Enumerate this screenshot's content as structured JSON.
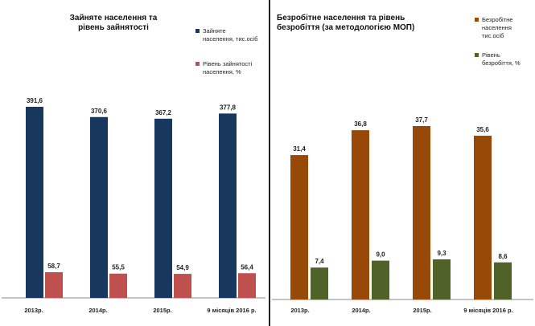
{
  "chart_data": [
    {
      "type": "bar",
      "title": "Зайняте населення та рівень зайнятості",
      "title_lines": [
        "Зайняте населення та",
        "рівень зайнятості"
      ],
      "categories": [
        "2013р.",
        "2014р.",
        "2015р.",
        "9 місяців 2016 р."
      ],
      "series": [
        {
          "name": "Зайняте населення, тис.осіб",
          "name_lines": [
            "Зайняте",
            "населення, тис.осіб"
          ],
          "color": "#17375e",
          "values": [
            391.6,
            370.6,
            367.2,
            377.8
          ],
          "labels": [
            "391,6",
            "370,6",
            "367,2",
            "377,8"
          ]
        },
        {
          "name": "Рівень зайнятості населення, %",
          "name_lines": [
            "Рівень зайнятості",
            "населення, %"
          ],
          "color": "#c0504d",
          "values": [
            58.7,
            55.5,
            54.9,
            56.4
          ],
          "labels": [
            "58,7",
            "55,5",
            "54,9",
            "56,4"
          ]
        }
      ],
      "legend": "top-right",
      "grid": false
    },
    {
      "type": "bar",
      "title": "Безробітне населення та рівень безробіття (за методологією МОП)",
      "title_lines": [
        "Безробітне населення та рівень",
        "безробіття (за методологією МОП)"
      ],
      "categories": [
        "2013р.",
        "2014р.",
        "2015р.",
        "9 місяців 2016 р."
      ],
      "series": [
        {
          "name": "Безробітне населення тис.осіб",
          "name_lines": [
            "Безробітне",
            "населення",
            "тис.осіб"
          ],
          "color": "#984807",
          "values": [
            31.4,
            36.8,
            37.7,
            35.6
          ],
          "labels": [
            "31,4",
            "36,8",
            "37,7",
            "35,6"
          ]
        },
        {
          "name": "Рівень безробіття, %",
          "name_lines": [
            "Рівень",
            "безробіття, %"
          ],
          "color": "#4f6228",
          "values": [
            7.4,
            9.0,
            9.3,
            8.6
          ],
          "labels": [
            "7,4",
            "9,0",
            "9,3",
            "8,6"
          ]
        }
      ],
      "legend": "top-right",
      "grid": false
    }
  ]
}
